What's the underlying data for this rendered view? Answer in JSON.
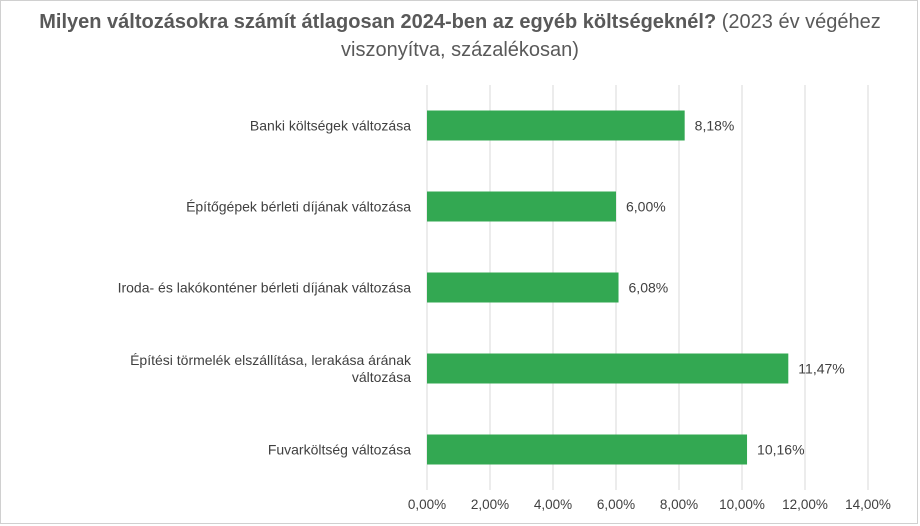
{
  "chart_data": {
    "type": "bar",
    "orientation": "horizontal",
    "title_bold": "Milyen változásokra számít átlagosan 2024-ben az egyéb költségeknél?",
    "title_normal": "(2023 év végéhez viszonyítva, százalékosan)",
    "categories": [
      "Banki költségek változása",
      "Építőgépek bérleti díjának változása",
      "Iroda- és lakókonténer bérleti díjának változása",
      "Építési törmelék elszállítása, lerakása árának változása",
      "Fuvarköltség változása"
    ],
    "category_lines": [
      [
        "Banki költségek változása"
      ],
      [
        "Építőgépek bérleti díjának változása"
      ],
      [
        "Iroda- és lakókonténer bérleti díjának változása"
      ],
      [
        "Építési törmelék elszállítása, lerakása árának",
        "változása"
      ],
      [
        "Fuvarköltség változása"
      ]
    ],
    "values": [
      8.18,
      6.0,
      6.08,
      11.47,
      10.16
    ],
    "data_labels": [
      "8,18%",
      "6,00%",
      "6,08%",
      "11,47%",
      "10,16%"
    ],
    "xlim": [
      0,
      14
    ],
    "xticks": [
      0,
      2,
      4,
      6,
      8,
      10,
      12,
      14
    ],
    "xtick_labels": [
      "0,00%",
      "2,00%",
      "4,00%",
      "6,00%",
      "8,00%",
      "10,00%",
      "12,00%",
      "14,00%"
    ],
    "xlabel": "",
    "ylabel": "",
    "grid": true,
    "legend": "none",
    "bar_color": "#33a852",
    "grid_color": "#d9d9d9",
    "text_color": "#404040",
    "title_color": "#595959"
  }
}
